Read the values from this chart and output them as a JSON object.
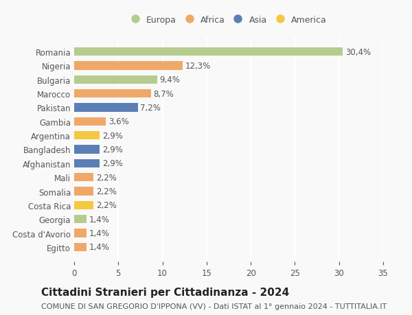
{
  "countries": [
    "Romania",
    "Nigeria",
    "Bulgaria",
    "Marocco",
    "Pakistan",
    "Gambia",
    "Argentina",
    "Bangladesh",
    "Afghanistan",
    "Mali",
    "Somalia",
    "Costa Rica",
    "Georgia",
    "Costa d'Avorio",
    "Egitto"
  ],
  "values": [
    30.4,
    12.3,
    9.4,
    8.7,
    7.2,
    3.6,
    2.9,
    2.9,
    2.9,
    2.2,
    2.2,
    2.2,
    1.4,
    1.4,
    1.4
  ],
  "labels": [
    "30,4%",
    "12,3%",
    "9,4%",
    "8,7%",
    "7,2%",
    "3,6%",
    "2,9%",
    "2,9%",
    "2,9%",
    "2,2%",
    "2,2%",
    "2,2%",
    "1,4%",
    "1,4%",
    "1,4%"
  ],
  "continents": [
    "Europa",
    "Africa",
    "Europa",
    "Africa",
    "Asia",
    "Africa",
    "America",
    "Asia",
    "Asia",
    "Africa",
    "Africa",
    "America",
    "Europa",
    "Africa",
    "Africa"
  ],
  "colors": {
    "Europa": "#b5cc8e",
    "Africa": "#f0a868",
    "Asia": "#5b7eb5",
    "America": "#f5c842"
  },
  "legend_order": [
    "Europa",
    "Africa",
    "Asia",
    "America"
  ],
  "xlim": [
    0,
    35
  ],
  "xticks": [
    0,
    5,
    10,
    15,
    20,
    25,
    30,
    35
  ],
  "title": "Cittadini Stranieri per Cittadinanza - 2024",
  "subtitle": "COMUNE DI SAN GREGORIO D'IPPONA (VV) - Dati ISTAT al 1° gennaio 2024 - TUTTITALIA.IT",
  "bg_color": "#f9f9f9",
  "grid_color": "#ffffff",
  "label_fontsize": 8.5,
  "title_fontsize": 11,
  "subtitle_fontsize": 8
}
